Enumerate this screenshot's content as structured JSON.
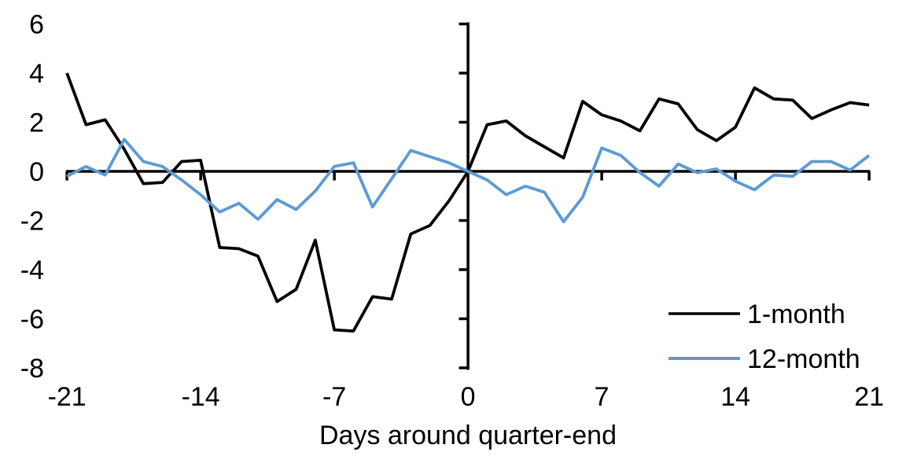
{
  "chart_data": {
    "type": "line",
    "title": "",
    "xlabel": "Days around quarter-end",
    "ylabel": "",
    "xlim": [
      -21,
      21
    ],
    "ylim": [
      -8,
      6
    ],
    "xticks": [
      -21,
      -14,
      -7,
      0,
      7,
      14,
      21
    ],
    "yticks": [
      6,
      4,
      2,
      0,
      -2,
      -4,
      -6,
      -8
    ],
    "grid": false,
    "legend_position": "lower right",
    "x": [
      -21,
      -20,
      -19,
      -18,
      -17,
      -16,
      -15,
      -14,
      -13,
      -12,
      -11,
      -10,
      -9,
      -8,
      -7,
      -6,
      -5,
      -4,
      -3,
      -2,
      -1,
      0,
      1,
      2,
      3,
      4,
      5,
      6,
      7,
      8,
      9,
      10,
      11,
      12,
      13,
      14,
      15,
      16,
      17,
      18,
      19,
      20,
      21
    ],
    "series": [
      {
        "name": "1-month",
        "color": "#000000",
        "values": [
          4.0,
          1.9,
          2.1,
          0.9,
          -0.5,
          -0.45,
          0.4,
          0.45,
          -3.1,
          -3.15,
          -3.45,
          -5.3,
          -4.8,
          -2.8,
          -6.45,
          -6.5,
          -5.1,
          -5.2,
          -2.55,
          -2.2,
          -1.2,
          0,
          1.9,
          2.05,
          1.45,
          1.0,
          0.55,
          2.85,
          2.3,
          2.05,
          1.65,
          2.95,
          2.75,
          1.7,
          1.25,
          1.8,
          3.4,
          2.95,
          2.9,
          2.15,
          2.5,
          2.8,
          2.7
        ]
      },
      {
        "name": "12-month",
        "color": "#5B9BD5",
        "values": [
          -0.2,
          0.2,
          -0.15,
          1.3,
          0.4,
          0.2,
          -0.35,
          -0.95,
          -1.65,
          -1.3,
          -1.95,
          -1.15,
          -1.55,
          -0.8,
          0.2,
          0.35,
          -1.45,
          -0.3,
          0.85,
          0.6,
          0.35,
          0,
          -0.35,
          -0.95,
          -0.6,
          -0.85,
          -2.05,
          -1.05,
          0.95,
          0.65,
          -0.05,
          -0.6,
          0.3,
          -0.05,
          0.1,
          -0.4,
          -0.75,
          -0.15,
          -0.2,
          0.4,
          0.4,
          0.05,
          0.65
        ]
      }
    ]
  }
}
